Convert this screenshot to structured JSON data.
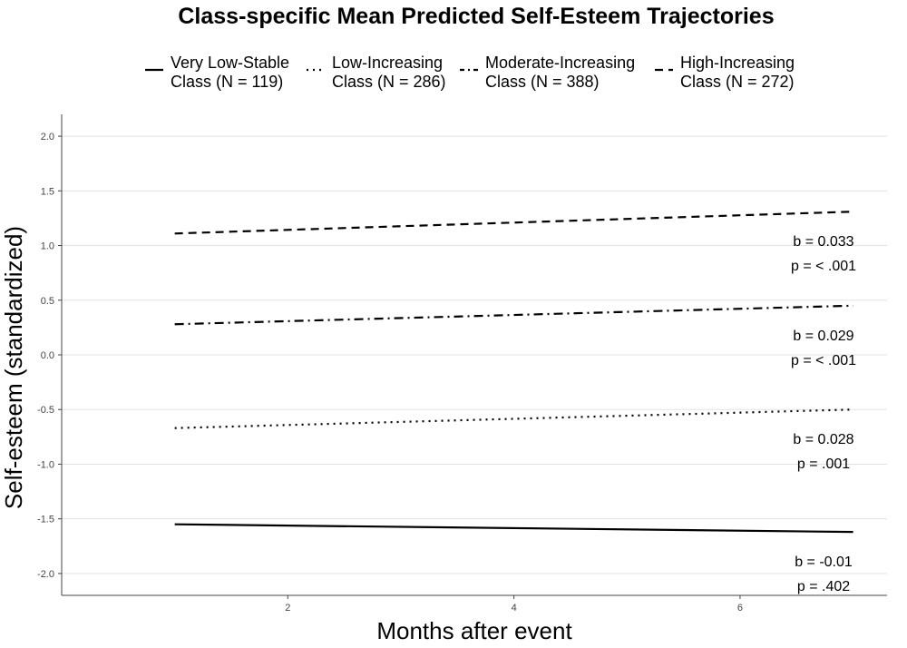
{
  "chart_data": {
    "type": "line",
    "title": "Class-specific Mean Predicted Self-Esteem Trajectories",
    "xlabel": "Months after event",
    "ylabel": "Self-esteem (standardized)",
    "xlim": [
      0.0,
      7.3
    ],
    "ylim": [
      -2.2,
      2.2
    ],
    "x_ticks": [
      2,
      4,
      6
    ],
    "y_ticks": [
      -2.0,
      -1.5,
      -1.0,
      -0.5,
      0.0,
      0.5,
      1.0,
      1.5,
      2.0
    ],
    "y_tick_labels": [
      "-2.0",
      "-1.5",
      "-1.0",
      "-0.5",
      "0.0",
      "0.5",
      "1.0",
      "1.5",
      "2.0"
    ],
    "x_tick_labels": [
      "2",
      "4",
      "6"
    ],
    "grid": "horizontal",
    "legend_position": "top",
    "series": [
      {
        "name_line1": "Very Low-Stable",
        "name_line2": "Class (N = 119)",
        "dash": "solid",
        "x": [
          1,
          7
        ],
        "y": [
          -1.55,
          -1.62
        ],
        "annotation": {
          "b": "b =  -0.01",
          "p": "p =  .402"
        }
      },
      {
        "name_line1": "Low-Increasing",
        "name_line2": "Class (N = 286)",
        "dash": "dotted",
        "x": [
          1,
          7
        ],
        "y": [
          -0.67,
          -0.5
        ],
        "annotation": {
          "b": "b =  0.028",
          "p": "p =  .001"
        }
      },
      {
        "name_line1": "Moderate-Increasing",
        "name_line2": "Class (N = 388)",
        "dash": "dashdot",
        "x": [
          1,
          7
        ],
        "y": [
          0.28,
          0.45
        ],
        "annotation": {
          "b": "b =  0.029",
          "p": "p = < .001"
        }
      },
      {
        "name_line1": "High-Increasing",
        "name_line2": "Class (N = 272)",
        "dash": "dashed",
        "x": [
          1,
          7
        ],
        "y": [
          1.11,
          1.31
        ],
        "annotation": {
          "b": "b =  0.033",
          "p": "p = < .001"
        }
      }
    ],
    "colors": {
      "line": "#000000",
      "grid": "#e3e3e3",
      "axis": "#444444"
    }
  }
}
